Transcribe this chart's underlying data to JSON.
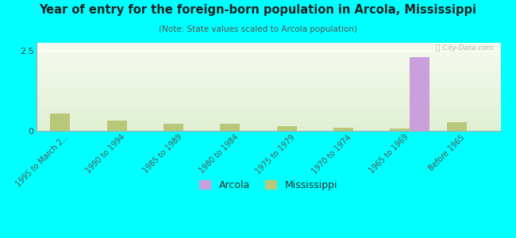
{
  "title": "Year of entry for the foreign-born population in Arcola, Mississippi",
  "subtitle": "(Note: State values scaled to Arcola population)",
  "categories": [
    "1995 to March 2...",
    "1990 to 1994",
    "1985 to 1989",
    "1980 to 1984",
    "1975 to 1979",
    "1970 to 1974",
    "1965 to 1969",
    "Before 1965"
  ],
  "arcola_values": [
    0,
    0,
    0,
    0,
    0,
    0,
    2.3,
    0
  ],
  "mississippi_values": [
    0.55,
    0.32,
    0.22,
    0.22,
    0.15,
    0.09,
    0.07,
    0.28
  ],
  "arcola_color": "#c9a0dc",
  "mississippi_color": "#b8c87a",
  "background_color": "#00ffff",
  "ylim": [
    0,
    2.75
  ],
  "yticks": [
    0,
    2.5
  ],
  "bar_width": 0.35,
  "watermark": "ⓘ City-Data.com"
}
